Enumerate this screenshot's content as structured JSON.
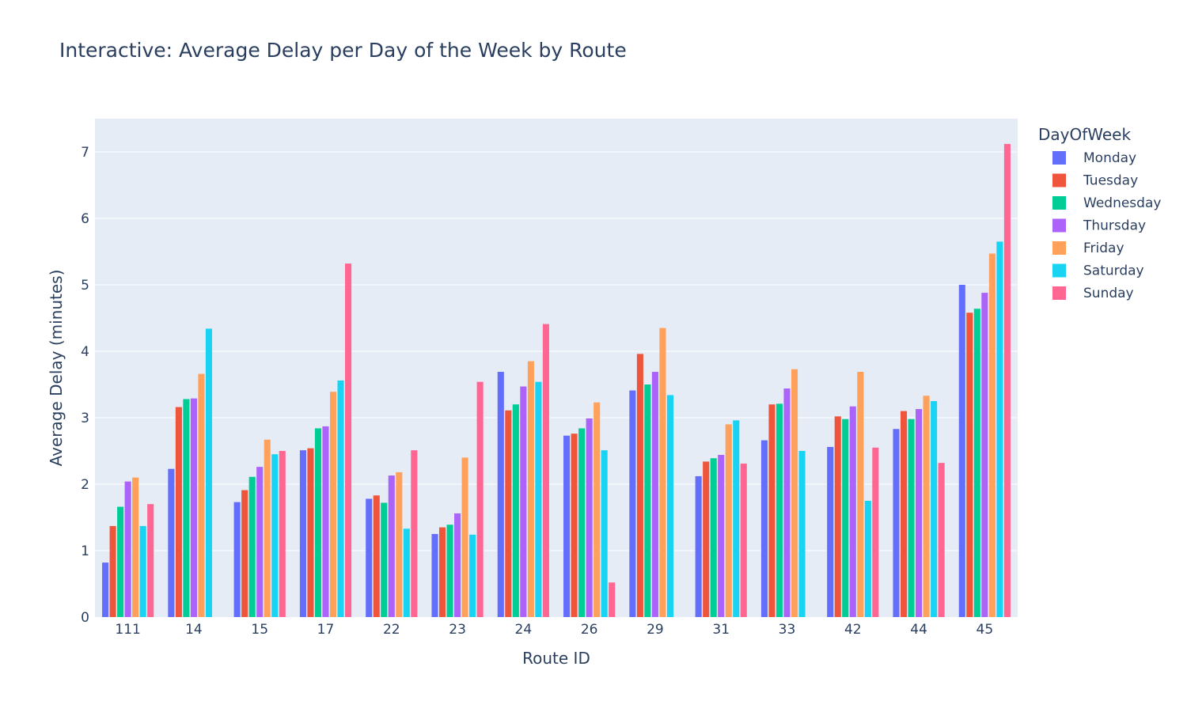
{
  "chart_data": {
    "type": "bar",
    "title": "Interactive: Average Delay per Day of the Week by Route",
    "xlabel": "Route ID",
    "ylabel": "Average Delay (minutes)",
    "ylim": [
      0,
      7.5
    ],
    "yticks": [
      0,
      1,
      2,
      3,
      4,
      5,
      6,
      7
    ],
    "grid": true,
    "legend_title": "DayOfWeek",
    "legend_position": "right",
    "categories": [
      "111",
      "14",
      "15",
      "17",
      "22",
      "23",
      "24",
      "26",
      "29",
      "31",
      "33",
      "42",
      "44",
      "45"
    ],
    "series": [
      {
        "name": "Monday",
        "color": "#636efa",
        "values": [
          0.82,
          2.23,
          1.73,
          2.51,
          1.78,
          1.25,
          3.69,
          2.73,
          3.41,
          2.12,
          2.66,
          2.56,
          2.83,
          5.0
        ]
      },
      {
        "name": "Tuesday",
        "color": "#ef553b",
        "values": [
          1.37,
          3.16,
          1.91,
          2.54,
          1.83,
          1.35,
          3.11,
          2.76,
          3.96,
          2.34,
          3.2,
          3.02,
          3.1,
          4.58
        ]
      },
      {
        "name": "Wednesday",
        "color": "#00cc96",
        "values": [
          1.66,
          3.28,
          2.11,
          2.84,
          1.72,
          1.39,
          3.2,
          2.84,
          3.5,
          2.39,
          3.21,
          2.98,
          2.98,
          4.64
        ]
      },
      {
        "name": "Thursday",
        "color": "#ab63fa",
        "values": [
          2.04,
          3.29,
          2.26,
          2.87,
          2.13,
          1.56,
          3.47,
          2.99,
          3.69,
          2.44,
          3.44,
          3.17,
          3.13,
          4.88
        ]
      },
      {
        "name": "Friday",
        "color": "#ffa15a",
        "values": [
          2.1,
          3.66,
          2.67,
          3.39,
          2.18,
          2.4,
          3.85,
          3.23,
          4.35,
          2.9,
          3.73,
          3.69,
          3.33,
          5.47
        ]
      },
      {
        "name": "Saturday",
        "color": "#19d3f3",
        "values": [
          1.37,
          4.34,
          2.45,
          3.56,
          1.33,
          1.24,
          3.54,
          2.51,
          3.34,
          2.96,
          2.5,
          1.75,
          3.25,
          5.65
        ]
      },
      {
        "name": "Sunday",
        "color": "#ff6692",
        "values": [
          1.7,
          null,
          2.5,
          5.32,
          2.51,
          3.54,
          4.41,
          0.52,
          null,
          2.31,
          null,
          2.55,
          2.32,
          7.12
        ]
      }
    ]
  }
}
